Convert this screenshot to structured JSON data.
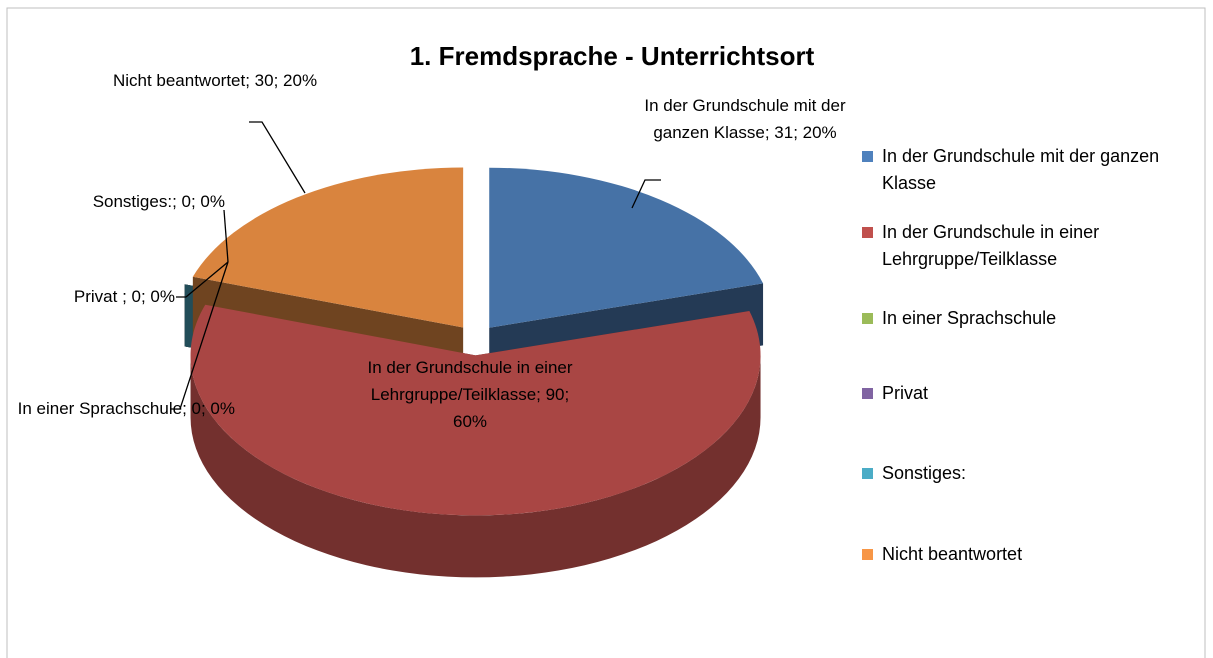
{
  "chart_data": {
    "type": "pie3d",
    "title": "1. Fremdsprache - Unterrichtsort",
    "categories": [
      "In der Grundschule mit der ganzen Klasse",
      "In der Grundschule in einer Lehrgruppe/Teilklasse",
      "In einer Sprachschule",
      "Privat",
      "Sonstiges:",
      "Nicht beantwortet"
    ],
    "values": [
      31,
      90,
      0,
      0,
      0,
      30
    ],
    "value_labels": [
      "In der Grundschule mit der ganzen Klasse; 31; 20%",
      "In der Grundschule in einer Lehrgruppe/Teilklasse; 90; 60%",
      "In einer Sprachschule; 0; 0%",
      "Privat ; 0; 0%",
      "Sonstiges:; 0; 0%",
      "Nicht beantwortet; 30; 20%"
    ],
    "colors": [
      "#4f81bd",
      "#c0504d",
      "#9bbb59",
      "#8064a2",
      "#4bacc6",
      "#f79646"
    ],
    "legend": "right"
  }
}
